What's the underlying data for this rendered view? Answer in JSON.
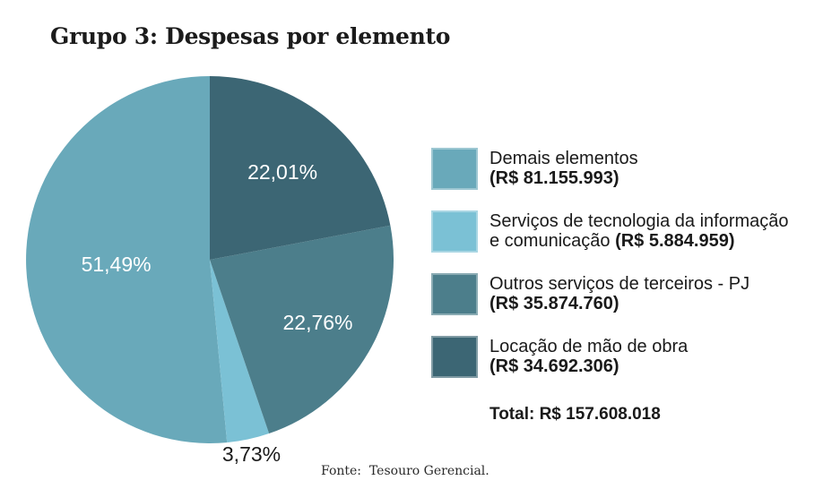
{
  "title": "Grupo 3: Despesas por elemento",
  "source_note": "Fonte:  Tesouro Gerencial.",
  "total_label": "Total: R$ 157.608.018",
  "chart_data": {
    "type": "pie",
    "title": "Grupo 3: Despesas por elemento",
    "start": "top",
    "direction": "counterclockwise",
    "total_display": "Total: R$ 157.608.018",
    "slices": [
      {
        "name": "Demais elementos",
        "amount": "R$ 81.155.993",
        "value": 51.49,
        "pct_label": "51,49%",
        "color": "#69A9BA"
      },
      {
        "name": "Serviços de tecnologia da informação e comunicação",
        "amount": "R$ 5.884.959",
        "value": 3.73,
        "pct_label": "3,73%",
        "color": "#7BC1D5"
      },
      {
        "name": "Outros serviços de terceiros - PJ",
        "amount": "R$ 35.874.760",
        "value": 22.76,
        "pct_label": "22,76%",
        "color": "#4C7E8B"
      },
      {
        "name": "Locação de mão de obra",
        "amount": "R$ 34.692.306",
        "value": 22.01,
        "pct_label": "22,01%",
        "color": "#3C6674"
      }
    ]
  },
  "legend": {
    "items": [
      {
        "line1": "Demais elementos",
        "line2_regular": "",
        "line2_bold": "(R$ 81.155.993)",
        "color": "#69A9BA"
      },
      {
        "line1": "Serviços de tecnologia da informação",
        "line2_regular": "e comunicação ",
        "line2_bold": "(R$ 5.884.959)",
        "color": "#7BC1D5"
      },
      {
        "line1": "Outros serviços de terceiros - PJ",
        "line2_regular": "",
        "line2_bold": "(R$ 35.874.760)",
        "color": "#4C7E8B"
      },
      {
        "line1": "Locação de mão de obra",
        "line2_regular": "",
        "line2_bold": "(R$ 34.692.306)",
        "color": "#3C6674"
      }
    ]
  }
}
